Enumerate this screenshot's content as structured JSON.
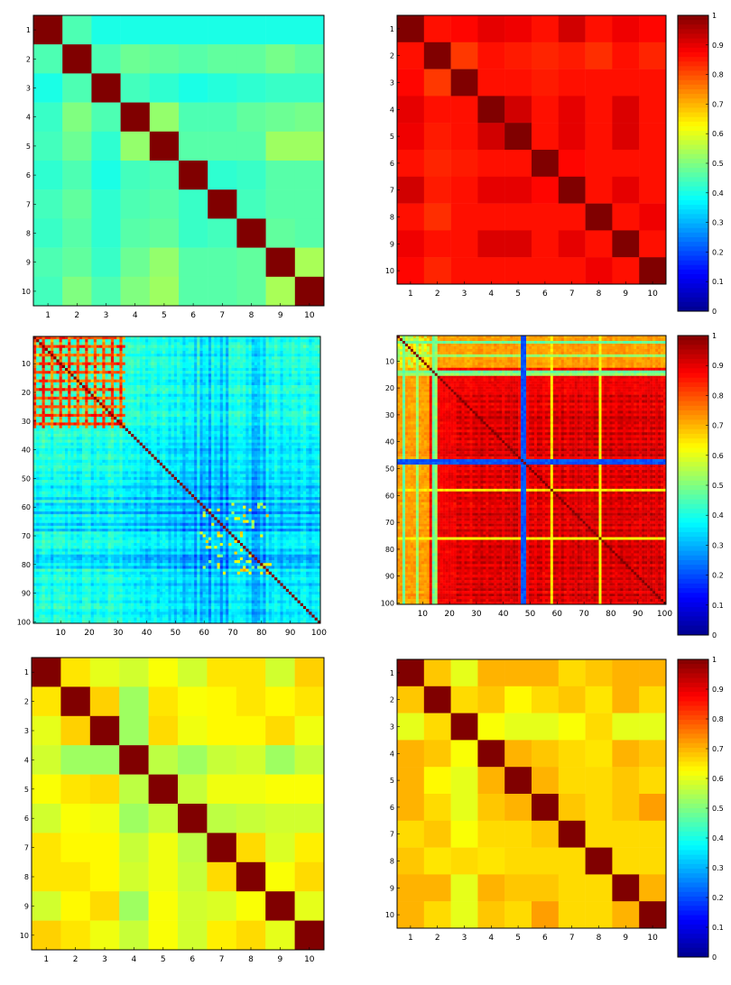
{
  "colormap": [
    "#00008f",
    "#0000ff",
    "#0080ff",
    "#00ffff",
    "#80ff80",
    "#ffff00",
    "#ff8000",
    "#ff0000",
    "#800000"
  ],
  "colorbar": {
    "ticks": [
      "0",
      "0.1",
      "0.2",
      "0.3",
      "0.4",
      "0.5",
      "0.6",
      "0.7",
      "0.8",
      "0.9",
      "1"
    ]
  },
  "chart_data": [
    {
      "type": "heatmap",
      "id": "row1-left",
      "n": 10,
      "tick_labels": [
        "1",
        "2",
        "3",
        "4",
        "5",
        "6",
        "7",
        "8",
        "9",
        "10"
      ],
      "clim": [
        0,
        1
      ],
      "values": [
        [
          1.0,
          0.45,
          0.4,
          0.4,
          0.4,
          0.4,
          0.4,
          0.4,
          0.4,
          0.4
        ],
        [
          0.45,
          1.0,
          0.45,
          0.48,
          0.47,
          0.46,
          0.47,
          0.47,
          0.49,
          0.47
        ],
        [
          0.4,
          0.45,
          1.0,
          0.44,
          0.42,
          0.4,
          0.41,
          0.42,
          0.43,
          0.43
        ],
        [
          0.43,
          0.5,
          0.45,
          1.0,
          0.52,
          0.45,
          0.45,
          0.47,
          0.48,
          0.49
        ],
        [
          0.44,
          0.48,
          0.42,
          0.52,
          1.0,
          0.46,
          0.46,
          0.46,
          0.53,
          0.53
        ],
        [
          0.42,
          0.45,
          0.4,
          0.44,
          0.45,
          1.0,
          0.42,
          0.43,
          0.46,
          0.46
        ],
        [
          0.44,
          0.47,
          0.42,
          0.45,
          0.46,
          0.43,
          1.0,
          0.44,
          0.46,
          0.46
        ],
        [
          0.43,
          0.46,
          0.42,
          0.46,
          0.47,
          0.43,
          0.44,
          1.0,
          0.47,
          0.46
        ],
        [
          0.45,
          0.47,
          0.43,
          0.48,
          0.52,
          0.46,
          0.46,
          0.47,
          1.0,
          0.54
        ],
        [
          0.44,
          0.5,
          0.45,
          0.5,
          0.53,
          0.46,
          0.46,
          0.47,
          0.54,
          1.0
        ]
      ]
    },
    {
      "type": "heatmap",
      "id": "row1-right",
      "n": 10,
      "tick_labels": [
        "1",
        "2",
        "3",
        "4",
        "5",
        "6",
        "7",
        "8",
        "9",
        "10"
      ],
      "clim": [
        0,
        1
      ],
      "values": [
        [
          1.0,
          0.86,
          0.87,
          0.9,
          0.89,
          0.86,
          0.92,
          0.86,
          0.89,
          0.87
        ],
        [
          0.86,
          1.0,
          0.82,
          0.86,
          0.85,
          0.84,
          0.85,
          0.83,
          0.86,
          0.84
        ],
        [
          0.87,
          0.82,
          1.0,
          0.86,
          0.86,
          0.85,
          0.86,
          0.86,
          0.86,
          0.86
        ],
        [
          0.9,
          0.86,
          0.86,
          1.0,
          0.92,
          0.86,
          0.9,
          0.86,
          0.91,
          0.86
        ],
        [
          0.89,
          0.85,
          0.86,
          0.92,
          1.0,
          0.86,
          0.9,
          0.86,
          0.91,
          0.86
        ],
        [
          0.86,
          0.84,
          0.85,
          0.86,
          0.86,
          1.0,
          0.87,
          0.86,
          0.86,
          0.86
        ],
        [
          0.92,
          0.85,
          0.86,
          0.9,
          0.9,
          0.87,
          1.0,
          0.86,
          0.9,
          0.86
        ],
        [
          0.86,
          0.83,
          0.86,
          0.86,
          0.86,
          0.86,
          0.86,
          1.0,
          0.86,
          0.89
        ],
        [
          0.89,
          0.86,
          0.86,
          0.91,
          0.91,
          0.86,
          0.9,
          0.86,
          1.0,
          0.86
        ],
        [
          0.87,
          0.84,
          0.86,
          0.86,
          0.86,
          0.86,
          0.86,
          0.89,
          0.86,
          1.0
        ]
      ]
    },
    {
      "type": "heatmap",
      "id": "row2-left",
      "n": 100,
      "pattern": "blue-diagonal",
      "tick_labels": [
        "10",
        "20",
        "30",
        "40",
        "50",
        "60",
        "70",
        "80",
        "90",
        "100"
      ],
      "clim": [
        0,
        1
      ]
    },
    {
      "type": "heatmap",
      "id": "row2-right",
      "n": 100,
      "pattern": "red-with-bands",
      "tick_labels": [
        "10",
        "20",
        "30",
        "40",
        "50",
        "60",
        "70",
        "80",
        "90",
        "100"
      ],
      "clim": [
        0,
        1
      ]
    },
    {
      "type": "heatmap",
      "id": "row3-left",
      "n": 10,
      "tick_labels": [
        "1",
        "2",
        "3",
        "4",
        "5",
        "6",
        "7",
        "8",
        "9",
        "10"
      ],
      "clim": [
        0,
        1
      ],
      "values": [
        [
          1.0,
          0.65,
          0.6,
          0.58,
          0.62,
          0.58,
          0.65,
          0.65,
          0.58,
          0.67
        ],
        [
          0.65,
          1.0,
          0.67,
          0.53,
          0.65,
          0.62,
          0.63,
          0.65,
          0.63,
          0.65
        ],
        [
          0.6,
          0.67,
          1.0,
          0.53,
          0.66,
          0.61,
          0.63,
          0.63,
          0.66,
          0.61
        ],
        [
          0.58,
          0.53,
          0.53,
          1.0,
          0.56,
          0.53,
          0.57,
          0.58,
          0.53,
          0.57
        ],
        [
          0.62,
          0.65,
          0.66,
          0.56,
          1.0,
          0.57,
          0.61,
          0.61,
          0.62,
          0.62
        ],
        [
          0.58,
          0.62,
          0.61,
          0.53,
          0.57,
          1.0,
          0.56,
          0.57,
          0.58,
          0.58
        ],
        [
          0.65,
          0.63,
          0.63,
          0.57,
          0.61,
          0.56,
          1.0,
          0.66,
          0.59,
          0.64
        ],
        [
          0.65,
          0.65,
          0.63,
          0.58,
          0.61,
          0.57,
          0.66,
          1.0,
          0.62,
          0.66
        ],
        [
          0.58,
          0.63,
          0.66,
          0.53,
          0.62,
          0.58,
          0.59,
          0.62,
          1.0,
          0.6
        ],
        [
          0.67,
          0.65,
          0.61,
          0.57,
          0.62,
          0.58,
          0.64,
          0.66,
          0.6,
          1.0
        ]
      ]
    },
    {
      "type": "heatmap",
      "id": "row3-right",
      "n": 10,
      "tick_labels": [
        "1",
        "2",
        "3",
        "4",
        "5",
        "6",
        "7",
        "8",
        "9",
        "10"
      ],
      "clim": [
        0,
        1
      ],
      "values": [
        [
          1.0,
          0.68,
          0.6,
          0.7,
          0.7,
          0.7,
          0.66,
          0.68,
          0.7,
          0.7
        ],
        [
          0.68,
          1.0,
          0.66,
          0.68,
          0.63,
          0.66,
          0.68,
          0.65,
          0.7,
          0.66
        ],
        [
          0.6,
          0.66,
          1.0,
          0.62,
          0.6,
          0.6,
          0.62,
          0.66,
          0.6,
          0.6
        ],
        [
          0.7,
          0.68,
          0.62,
          1.0,
          0.7,
          0.68,
          0.66,
          0.65,
          0.7,
          0.68
        ],
        [
          0.7,
          0.63,
          0.6,
          0.7,
          1.0,
          0.7,
          0.66,
          0.66,
          0.68,
          0.66
        ],
        [
          0.7,
          0.66,
          0.6,
          0.68,
          0.7,
          1.0,
          0.68,
          0.66,
          0.68,
          0.72
        ],
        [
          0.66,
          0.68,
          0.62,
          0.66,
          0.66,
          0.68,
          1.0,
          0.66,
          0.66,
          0.66
        ],
        [
          0.68,
          0.65,
          0.66,
          0.65,
          0.66,
          0.66,
          0.66,
          1.0,
          0.66,
          0.66
        ],
        [
          0.7,
          0.7,
          0.6,
          0.7,
          0.68,
          0.68,
          0.66,
          0.66,
          1.0,
          0.7
        ],
        [
          0.7,
          0.66,
          0.6,
          0.68,
          0.66,
          0.72,
          0.66,
          0.66,
          0.7,
          1.0
        ]
      ]
    }
  ]
}
